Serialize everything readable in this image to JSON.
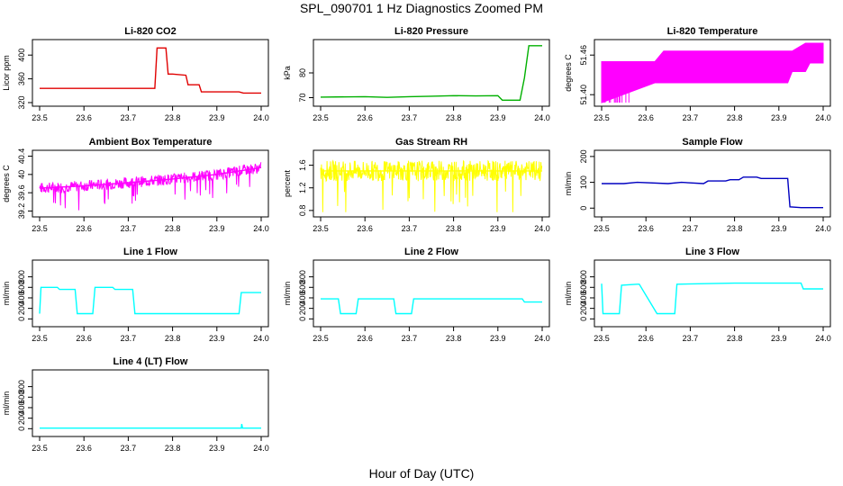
{
  "figure": {
    "title": "SPL_090701  1 Hz Diagnostics Zoomed PM",
    "xlabel": "Hour of Day (UTC)"
  },
  "chart_data": [
    {
      "type": "line",
      "title": "Li-820 CO2",
      "ylabel": "Licor ppm",
      "color": "#e00000",
      "xlim": [
        23.5,
        24.0
      ],
      "ylim": [
        320,
        420
      ],
      "yticks": [
        320,
        360,
        400
      ],
      "x": [
        23.5,
        23.65,
        23.76,
        23.765,
        23.785,
        23.79,
        23.8,
        23.83,
        23.835,
        23.86,
        23.865,
        23.95,
        23.96,
        24.0
      ],
      "y": [
        344,
        344,
        344,
        412,
        412,
        368,
        368,
        366,
        350,
        350,
        338,
        338,
        336,
        336
      ]
    },
    {
      "type": "line",
      "title": "Li-820 Pressure",
      "ylabel": "kPa",
      "color": "#00b000",
      "xlim": [
        23.5,
        24.0
      ],
      "ylim": [
        68,
        92
      ],
      "yticks": [
        70,
        80
      ],
      "x": [
        23.5,
        23.6,
        23.65,
        23.7,
        23.75,
        23.8,
        23.85,
        23.9,
        23.91,
        23.95,
        23.96,
        23.97,
        24.0
      ],
      "y": [
        70.2,
        70.4,
        70.1,
        70.4,
        70.6,
        70.8,
        70.7,
        70.8,
        69.0,
        69.0,
        78.0,
        91.0,
        91.0
      ]
    },
    {
      "type": "area",
      "title": "Li-820 Temperature",
      "ylabel": "degrees C",
      "color": "#ff00ff",
      "xlim": [
        23.5,
        24.0
      ],
      "ylim": [
        51.388,
        51.478
      ],
      "yticks": [
        51.4,
        51.46
      ],
      "x": [
        23.5,
        23.62,
        23.64,
        23.92,
        23.93,
        23.96,
        23.97,
        24.0
      ],
      "ymin": [
        51.388,
        51.418,
        51.418,
        51.418,
        51.435,
        51.435,
        51.448,
        51.448
      ],
      "ymax": [
        51.45,
        51.45,
        51.466,
        51.466,
        51.466,
        51.478,
        51.478,
        51.478
      ]
    },
    {
      "type": "line",
      "title": "Ambient Box Temperature",
      "ylabel": "degrees C",
      "color": "#ff00ff",
      "xlim": [
        23.5,
        24.0
      ],
      "ylim": [
        39.15,
        40.45
      ],
      "yticks": [
        39.2,
        39.6,
        40.0,
        40.4
      ],
      "x": [
        23.5,
        23.6,
        23.7,
        23.8,
        23.9,
        24.0
      ],
      "y": [
        39.7,
        39.75,
        39.82,
        39.9,
        40.0,
        40.15
      ]
    },
    {
      "type": "line",
      "title": "Gas Stream RH",
      "ylabel": "percent",
      "color": "#ffff00",
      "xlim": [
        23.5,
        24.0
      ],
      "ylim": [
        0.75,
        1.8
      ],
      "yticks": [
        0.8,
        1.2,
        1.6
      ],
      "x": [
        23.5,
        23.6,
        23.7,
        23.8,
        23.9,
        24.0
      ],
      "y": [
        1.5,
        1.5,
        1.5,
        1.5,
        1.5,
        1.5
      ]
    },
    {
      "type": "line",
      "title": "Sample Flow",
      "ylabel": "ml/min",
      "color": "#0000c0",
      "xlim": [
        23.5,
        24.0
      ],
      "ylim": [
        -20,
        210
      ],
      "yticks": [
        0,
        100,
        200
      ],
      "x": [
        23.5,
        23.55,
        23.58,
        23.65,
        23.68,
        23.73,
        23.74,
        23.78,
        23.79,
        23.81,
        23.82,
        23.85,
        23.86,
        23.92,
        23.925,
        23.95,
        24.0
      ],
      "y": [
        95,
        95,
        100,
        95,
        100,
        95,
        105,
        105,
        110,
        110,
        120,
        120,
        115,
        115,
        5,
        2,
        2
      ]
    },
    {
      "type": "line",
      "title": "Line 1 Flow",
      "ylabel": "ml/min",
      "color": "#00ffff",
      "xlim": [
        23.5,
        24.0
      ],
      "ylim": [
        -80,
        1050
      ],
      "yticks": [
        0,
        200,
        400,
        600,
        800
      ],
      "x": [
        23.5,
        23.503,
        23.54,
        23.545,
        23.58,
        23.585,
        23.62,
        23.625,
        23.665,
        23.67,
        23.71,
        23.715,
        23.95,
        23.955,
        24.0
      ],
      "y": [
        100,
        600,
        600,
        560,
        560,
        100,
        100,
        600,
        600,
        560,
        560,
        100,
        100,
        500,
        500
      ]
    },
    {
      "type": "line",
      "title": "Line 2 Flow",
      "ylabel": "ml/min",
      "color": "#00ffff",
      "xlim": [
        23.5,
        24.0
      ],
      "ylim": [
        -80,
        1050
      ],
      "yticks": [
        0,
        200,
        400,
        600,
        800
      ],
      "x": [
        23.5,
        23.54,
        23.545,
        23.58,
        23.585,
        23.665,
        23.67,
        23.705,
        23.71,
        23.955,
        23.96,
        24.0
      ],
      "y": [
        380,
        380,
        100,
        100,
        380,
        380,
        100,
        100,
        380,
        380,
        320,
        320
      ]
    },
    {
      "type": "line",
      "title": "Line 3 Flow",
      "ylabel": "ml/min",
      "color": "#00ffff",
      "xlim": [
        23.5,
        24.0
      ],
      "ylim": [
        -80,
        1050
      ],
      "yticks": [
        0,
        200,
        400,
        600,
        800
      ],
      "x": [
        23.5,
        23.503,
        23.506,
        23.54,
        23.545,
        23.58,
        23.585,
        23.625,
        23.63,
        23.665,
        23.67,
        23.8,
        23.95,
        23.955,
        24.0
      ],
      "y": [
        670,
        100,
        100,
        100,
        640,
        660,
        660,
        100,
        100,
        100,
        660,
        680,
        680,
        570,
        570
      ]
    },
    {
      "type": "line",
      "title": "Line 4 (LT) Flow",
      "ylabel": "ml/min",
      "color": "#00ffff",
      "xlim": [
        23.5,
        24.0
      ],
      "ylim": [
        -80,
        1050
      ],
      "yticks": [
        0,
        200,
        400,
        600,
        800
      ],
      "x": [
        23.5,
        23.955,
        23.956,
        23.958,
        24.0
      ],
      "y": [
        10,
        10,
        90,
        10,
        10
      ]
    }
  ],
  "xticks": [
    "23.5",
    "23.6",
    "23.7",
    "23.8",
    "23.9",
    "24.0"
  ]
}
